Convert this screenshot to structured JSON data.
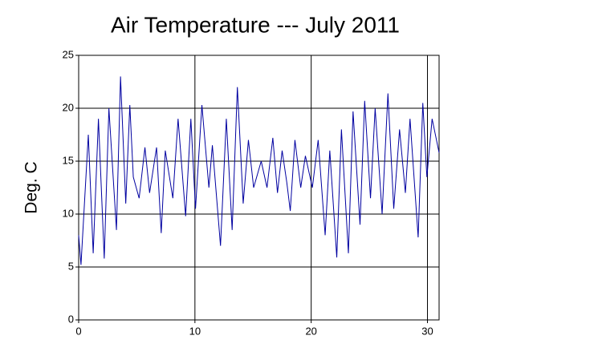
{
  "chart_data": {
    "type": "line",
    "title": "Air Temperature --- July 2011",
    "y_label": "Deg. C",
    "x": [
      0,
      0.2,
      0.83,
      1.25,
      1.7,
      2.2,
      2.6,
      3.25,
      3.6,
      4.05,
      4.4,
      4.7,
      5.2,
      5.7,
      6.1,
      6.7,
      7.1,
      7.45,
      8.1,
      8.55,
      9.2,
      9.65,
      10.05,
      10.6,
      11.2,
      11.5,
      12.2,
      12.7,
      13.2,
      13.65,
      14.15,
      14.6,
      15.05,
      15.7,
      16.2,
      16.7,
      17.1,
      17.5,
      17.9,
      18.2,
      18.6,
      19.1,
      19.5,
      20.1,
      20.6,
      21.2,
      21.6,
      22.2,
      22.6,
      23.2,
      23.6,
      24.2,
      24.6,
      25.1,
      25.5,
      26.1,
      26.6,
      27.1,
      27.6,
      28.1,
      28.5,
      29.2,
      29.6,
      29.95,
      30.4,
      31
    ],
    "values": [
      8,
      5.2,
      17.5,
      6.3,
      19,
      5.8,
      20,
      8.5,
      23,
      11,
      20.3,
      13.5,
      11.5,
      16.3,
      12,
      16.3,
      8.2,
      16,
      11.5,
      19,
      9.8,
      19,
      10.5,
      20.3,
      12.5,
      16.5,
      7,
      19,
      8.5,
      22,
      11,
      17,
      12.5,
      15,
      12.5,
      17.2,
      12,
      16,
      13,
      10.3,
      17,
      12.5,
      15.5,
      12.5,
      17,
      8,
      16,
      5.9,
      18,
      6.3,
      19.7,
      9,
      20.7,
      11.5,
      20,
      10,
      21.4,
      10.5,
      18,
      12,
      19,
      7.8,
      20.5,
      13.5,
      19,
      15.8
    ],
    "color": "#0000a0",
    "xlim": [
      0,
      31
    ],
    "xticks": [
      0,
      10,
      20,
      30
    ],
    "ylim": [
      0,
      25
    ],
    "yticks": [
      0,
      5,
      10,
      15,
      20,
      25
    ],
    "grid": true
  }
}
